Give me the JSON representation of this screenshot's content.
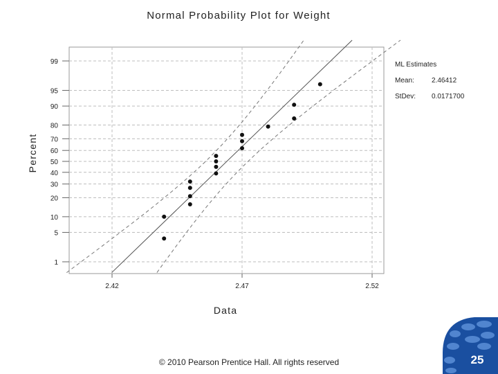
{
  "chart_data": {
    "type": "scatter",
    "title": "Normal Probability Plot for Weight",
    "xlabel": "Data",
    "ylabel": "Percent",
    "xlim": [
      2.405,
      2.525
    ],
    "x_ticks": [
      "2.42",
      "2.47",
      "2.52"
    ],
    "y_ticks": [
      "1",
      "5",
      "10",
      "20",
      "30",
      "40",
      "50",
      "60",
      "70",
      "80",
      "90",
      "95",
      "99"
    ],
    "grid": true,
    "points": [
      {
        "x": 2.44,
        "p": 3.7
      },
      {
        "x": 2.44,
        "p": 10
      },
      {
        "x": 2.45,
        "p": 16
      },
      {
        "x": 2.45,
        "p": 21
      },
      {
        "x": 2.45,
        "p": 27
      },
      {
        "x": 2.45,
        "p": 32
      },
      {
        "x": 2.46,
        "p": 39
      },
      {
        "x": 2.46,
        "p": 45
      },
      {
        "x": 2.46,
        "p": 50
      },
      {
        "x": 2.46,
        "p": 55
      },
      {
        "x": 2.47,
        "p": 62
      },
      {
        "x": 2.47,
        "p": 68
      },
      {
        "x": 2.47,
        "p": 73
      },
      {
        "x": 2.48,
        "p": 79
      },
      {
        "x": 2.49,
        "p": 84
      },
      {
        "x": 2.49,
        "p": 90.5
      },
      {
        "x": 2.5,
        "p": 96.3
      }
    ],
    "fit_line": {
      "mean": 2.46412,
      "stdev": 0.01717
    },
    "confidence_band": true,
    "legend": {
      "title": "ML Estimates",
      "mean_label": "Mean:",
      "mean_value": "2.46412",
      "stdev_label": "StDev:",
      "stdev_value": "0.0171700"
    }
  },
  "footer": {
    "copyright": "© 2010 Pearson Prentice Hall. All rights reserved",
    "page_number": "25"
  },
  "colors": {
    "badge_blue": "#1a4fa0",
    "badge_light": "#5b8fd8",
    "grid": "#bdbdbd"
  }
}
